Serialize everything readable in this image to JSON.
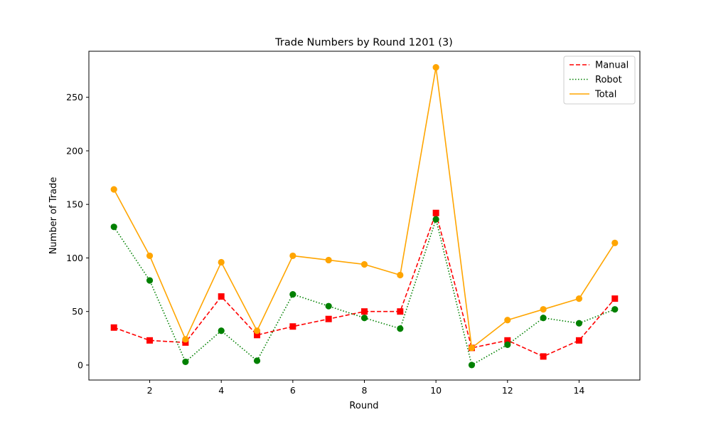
{
  "chart_data": {
    "type": "line",
    "title": "Trade Numbers by Round 1201 (3)",
    "xlabel": "Round",
    "ylabel": "Number of Trade",
    "x": [
      1,
      2,
      3,
      4,
      5,
      6,
      7,
      8,
      9,
      10,
      11,
      12,
      13,
      14,
      15
    ],
    "xlim": [
      0.3,
      15.7
    ],
    "ylim": [
      -14,
      293
    ],
    "xticks": [
      2,
      4,
      6,
      8,
      10,
      12,
      14
    ],
    "yticks": [
      0,
      50,
      100,
      150,
      200,
      250
    ],
    "grid": false,
    "legend_position": "top-right",
    "series": [
      {
        "name": "Manual",
        "color": "#ff0000",
        "line_style": "dashed",
        "marker": "square",
        "values": [
          35,
          23,
          21,
          64,
          28,
          36,
          43,
          50,
          50,
          142,
          16,
          23,
          8,
          23,
          62
        ]
      },
      {
        "name": "Robot",
        "color": "#008000",
        "line_style": "dotted",
        "marker": "circle",
        "values": [
          129,
          79,
          3,
          32,
          4,
          66,
          55,
          44,
          34,
          136,
          0,
          19,
          44,
          39,
          52
        ]
      },
      {
        "name": "Total",
        "color": "#ffa500",
        "line_style": "solid",
        "marker": "circle",
        "values": [
          164,
          102,
          24,
          96,
          32,
          102,
          98,
          94,
          84,
          278,
          16,
          42,
          52,
          62,
          114
        ]
      }
    ]
  }
}
